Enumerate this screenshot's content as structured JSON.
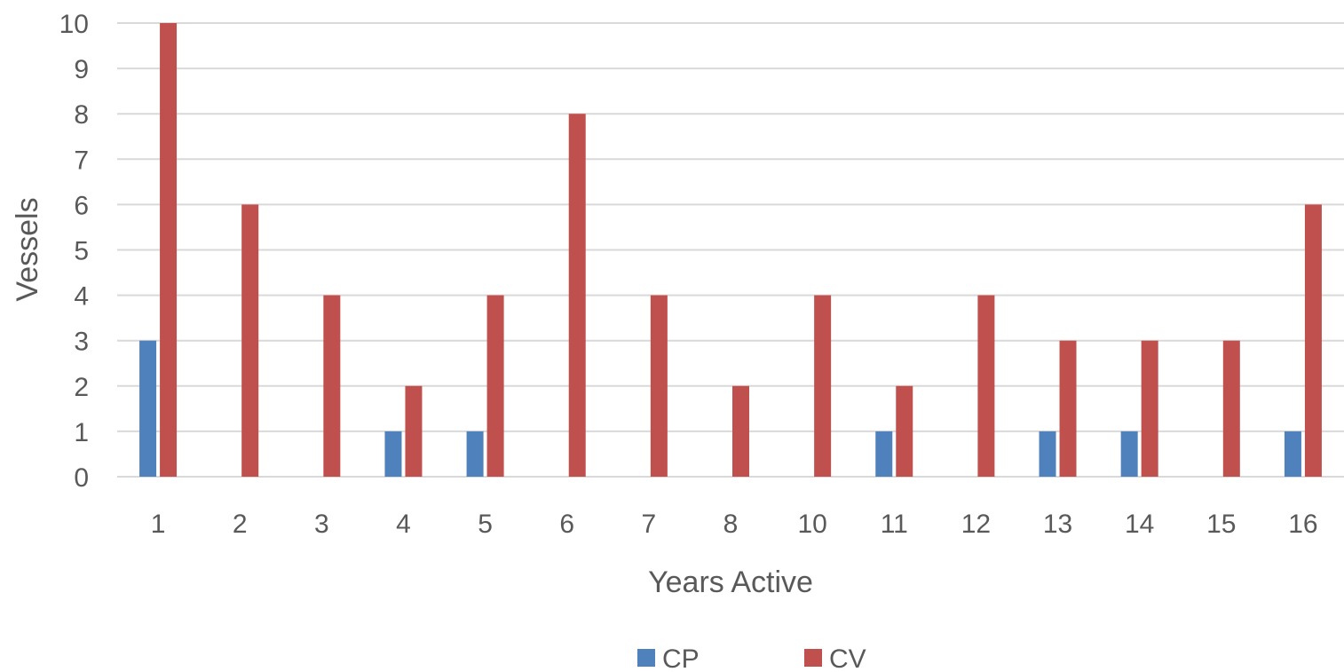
{
  "chart_data": {
    "type": "bar",
    "title": "",
    "xlabel": "Years Active",
    "ylabel": "Vessels",
    "categories": [
      "1",
      "2",
      "3",
      "4",
      "5",
      "6",
      "7",
      "8",
      "10",
      "11",
      "12",
      "13",
      "14",
      "15",
      "16"
    ],
    "series": [
      {
        "name": "CP",
        "color": "#4f81bd",
        "values": [
          3,
          0,
          0,
          1,
          1,
          0,
          0,
          0,
          0,
          1,
          0,
          1,
          1,
          0,
          1
        ]
      },
      {
        "name": "CV",
        "color": "#c0504d",
        "values": [
          10,
          6,
          4,
          2,
          4,
          8,
          4,
          2,
          4,
          2,
          4,
          3,
          3,
          3,
          6
        ]
      }
    ],
    "ylim": [
      0,
      10
    ],
    "yticks": [
      0,
      1,
      2,
      3,
      4,
      5,
      6,
      7,
      8,
      9,
      10
    ],
    "grid": true,
    "legend_position": "bottom"
  }
}
